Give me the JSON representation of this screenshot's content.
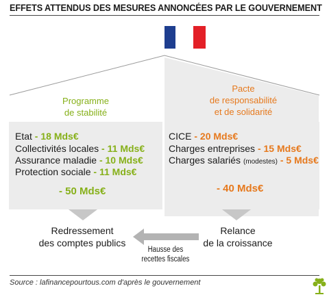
{
  "title": "EFFETS ATTENDUS DES MESURES ANNONCÉES PAR LE GOUVERNEMENT",
  "colors": {
    "flag_blue": "#1e3e8f",
    "flag_white": "#ffffff",
    "flag_red": "#e32027",
    "green_accent": "#86b019",
    "orange_accent": "#e6791d",
    "box_bg": "#ececec",
    "arrow_gray": "#b3b3b3"
  },
  "left": {
    "title_line1": "Programme",
    "title_line2": "de stabilité",
    "items": [
      {
        "label": "Etat",
        "sep": " - ",
        "value": "18 Mds€"
      },
      {
        "label": "Collectivités locales",
        "sep": " - ",
        "value": "11 Mds€"
      },
      {
        "label": "Assurance maladie",
        "sep": " - ",
        "value": "10 Mds€"
      },
      {
        "label": "Protection sociale",
        "sep": " - ",
        "value": "11 Mds€"
      }
    ],
    "total": "- 50 Mds€",
    "result_line1": "Redressement",
    "result_line2": "des comptes publics"
  },
  "right": {
    "title_line1": "Pacte",
    "title_line2": "de responsabilité",
    "title_line3": "et de solidarité",
    "items": [
      {
        "label": "CICE",
        "note": "",
        "sep": " - ",
        "value": "20 Mds€"
      },
      {
        "label": "Charges entreprises",
        "note": "",
        "sep": " - ",
        "value": "15 Mds€"
      },
      {
        "label": "Charges salariés",
        "note": "(modestes)",
        "sep": " - ",
        "value": "5 Mds€"
      }
    ],
    "total": "- 40 Mds€",
    "result_line1": "Relance",
    "result_line2": "de la croissance"
  },
  "middle_arrow": {
    "line1": "Hausse des",
    "line2": "recettes fiscales"
  },
  "source": "Source : lafinancepourtous.com d'après le gouvernement",
  "logo_icon": "tree-logo-icon"
}
